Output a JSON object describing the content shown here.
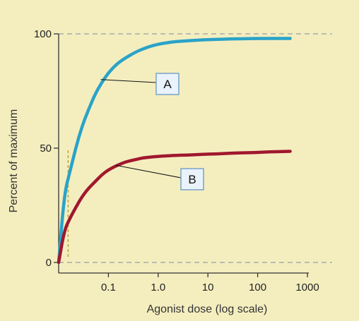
{
  "chart_data": {
    "type": "line",
    "xlabel": "Agonist dose (log scale)",
    "ylabel": "Percent of maximum",
    "x_scale": "log",
    "xlim": [
      0.01,
      1000
    ],
    "ylim": [
      0,
      100
    ],
    "x_ticks": [
      {
        "value": 0.1,
        "label": "0.1"
      },
      {
        "value": 1,
        "label": "1.0"
      },
      {
        "value": 10,
        "label": "10"
      },
      {
        "value": 100,
        "label": "100"
      },
      {
        "value": 1000,
        "label": "1000"
      }
    ],
    "y_ticks": [
      {
        "value": 0,
        "label": "0"
      },
      {
        "value": 50,
        "label": "50"
      },
      {
        "value": 100,
        "label": "100"
      }
    ],
    "dashed_reference_lines": [
      100,
      0
    ],
    "background_color": "#f4eebf",
    "series": [
      {
        "name": "A",
        "color": "#2aa3c8",
        "x": [
          0.01,
          0.013,
          0.017,
          0.022,
          0.03,
          0.04,
          0.055,
          0.075,
          0.1,
          0.15,
          0.22,
          0.35,
          0.5,
          0.8,
          1.2,
          2,
          4,
          8,
          15,
          30,
          60,
          120,
          250,
          450
        ],
        "y": [
          0,
          30,
          40,
          50,
          60,
          67,
          74,
          79,
          83,
          87,
          89.5,
          92,
          93.5,
          95,
          95.8,
          96.5,
          97,
          97.4,
          97.6,
          97.8,
          97.9,
          98,
          98,
          98
        ]
      },
      {
        "name": "B",
        "color": "#a0182e",
        "x": [
          0.01,
          0.013,
          0.017,
          0.022,
          0.03,
          0.04,
          0.055,
          0.075,
          0.1,
          0.15,
          0.22,
          0.35,
          0.5,
          0.8,
          1.2,
          2,
          4,
          8,
          15,
          30,
          60,
          120,
          250,
          450
        ],
        "y": [
          0,
          14,
          19.5,
          24,
          29,
          32.5,
          35.5,
          38.5,
          40.5,
          42.5,
          44,
          45,
          45.8,
          46.2,
          46.5,
          46.8,
          47,
          47.3,
          47.5,
          47.8,
          48,
          48.2,
          48.5,
          48.6
        ]
      }
    ],
    "guide_line": {
      "x": 0.0155,
      "y_from": 0,
      "y_to": 50
    },
    "callouts": [
      {
        "label": "A",
        "series": "A",
        "target_x": 0.07,
        "target_y": 80
      },
      {
        "label": "B",
        "series": "B",
        "target_x": 0.14,
        "target_y": 42.5
      }
    ]
  }
}
